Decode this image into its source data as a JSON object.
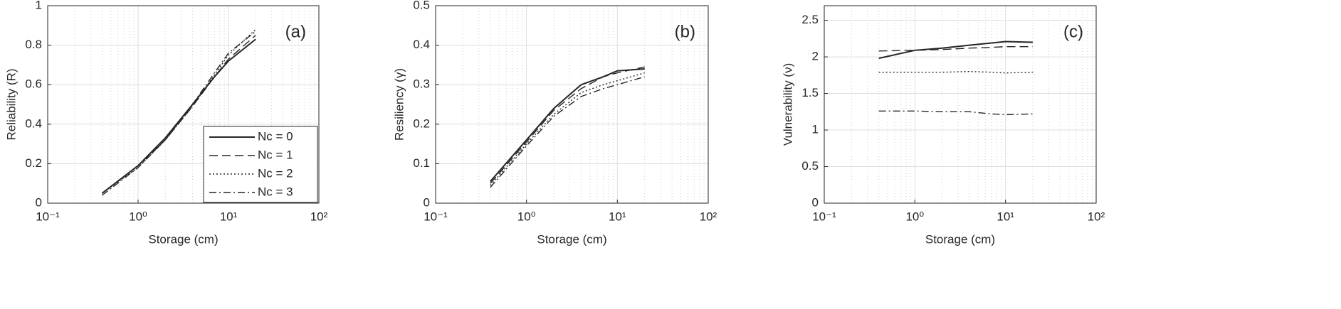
{
  "chart_data": [
    {
      "type": "line",
      "panel_label": "(a)",
      "xlabel": "Storage (cm)",
      "ylabel": "Reliability (R)",
      "log_x": true,
      "grid": true,
      "minor_grid": true,
      "legend": "lower right",
      "x": [
        0.4,
        1,
        2,
        4,
        7,
        10,
        20
      ],
      "xlim": [
        0.1,
        100
      ],
      "xticks": [
        {
          "value": 0.1,
          "label": "10⁻¹"
        },
        {
          "value": 1,
          "label": "10⁰"
        },
        {
          "value": 10,
          "label": "10¹"
        },
        {
          "value": 100,
          "label": "10²"
        }
      ],
      "ylim": [
        0,
        1
      ],
      "yticks": [
        0,
        0.2,
        0.4,
        0.6,
        0.8,
        1
      ],
      "series": [
        {
          "name": "Nc = 0",
          "color": "#262626",
          "line_style": "solid",
          "values": [
            0.05,
            0.19,
            0.33,
            0.5,
            0.64,
            0.72,
            0.83
          ]
        },
        {
          "name": "Nc = 1",
          "color": "#262626",
          "line_style": "dashed",
          "values": [
            0.05,
            0.19,
            0.32,
            0.49,
            0.64,
            0.73,
            0.85
          ]
        },
        {
          "name": "Nc = 2",
          "color": "#262626",
          "line_style": "dotted",
          "values": [
            0.05,
            0.18,
            0.32,
            0.49,
            0.65,
            0.75,
            0.88
          ]
        },
        {
          "name": "Nc = 3",
          "color": "#262626",
          "line_style": "dashdot",
          "values": [
            0.04,
            0.18,
            0.32,
            0.5,
            0.66,
            0.76,
            0.87
          ]
        }
      ]
    },
    {
      "type": "line",
      "panel_label": "(b)",
      "xlabel": "Storage (cm)",
      "ylabel": "Resiliency (γ)",
      "log_x": true,
      "grid": true,
      "minor_grid": true,
      "x": [
        0.4,
        1,
        2,
        4,
        7,
        10,
        20
      ],
      "xlim": [
        0.1,
        100
      ],
      "xticks": [
        {
          "value": 0.1,
          "label": "10⁻¹"
        },
        {
          "value": 1,
          "label": "10⁰"
        },
        {
          "value": 10,
          "label": "10¹"
        },
        {
          "value": 100,
          "label": "10²"
        }
      ],
      "ylim": [
        0,
        0.5
      ],
      "yticks": [
        0,
        0.1,
        0.2,
        0.3,
        0.4,
        0.5
      ],
      "series": [
        {
          "color": "#262626",
          "line_style": "solid",
          "values": [
            0.055,
            0.16,
            0.24,
            0.3,
            0.32,
            0.335,
            0.34
          ]
        },
        {
          "color": "#262626",
          "line_style": "dashed",
          "values": [
            0.05,
            0.155,
            0.235,
            0.29,
            0.32,
            0.33,
            0.345
          ]
        },
        {
          "color": "#262626",
          "line_style": "dotted",
          "values": [
            0.045,
            0.15,
            0.225,
            0.28,
            0.3,
            0.31,
            0.33
          ]
        },
        {
          "color": "#262626",
          "line_style": "dashdot",
          "values": [
            0.04,
            0.145,
            0.22,
            0.27,
            0.29,
            0.3,
            0.32
          ]
        }
      ]
    },
    {
      "type": "line",
      "panel_label": "(c)",
      "xlabel": "Storage (cm)",
      "ylabel": "Vulnerability (ν)",
      "log_x": true,
      "grid": true,
      "minor_grid": true,
      "x": [
        0.4,
        1,
        2,
        4,
        7,
        10,
        20
      ],
      "xlim": [
        0.1,
        100
      ],
      "xticks": [
        {
          "value": 0.1,
          "label": "10⁻¹"
        },
        {
          "value": 1,
          "label": "10⁰"
        },
        {
          "value": 10,
          "label": "10¹"
        },
        {
          "value": 100,
          "label": "10²"
        }
      ],
      "ylim": [
        0,
        2.7
      ],
      "yticks": [
        0,
        0.5,
        1,
        1.5,
        2,
        2.5
      ],
      "series": [
        {
          "color": "#262626",
          "line_style": "solid",
          "values": [
            1.98,
            2.09,
            2.12,
            2.16,
            2.19,
            2.21,
            2.2
          ]
        },
        {
          "color": "#262626",
          "line_style": "dashed",
          "values": [
            2.08,
            2.09,
            2.1,
            2.12,
            2.13,
            2.14,
            2.14
          ]
        },
        {
          "color": "#262626",
          "line_style": "dotted",
          "values": [
            1.79,
            1.79,
            1.79,
            1.8,
            1.79,
            1.78,
            1.79
          ]
        },
        {
          "color": "#262626",
          "line_style": "dashdot",
          "values": [
            1.26,
            1.26,
            1.25,
            1.25,
            1.22,
            1.21,
            1.22
          ]
        }
      ]
    }
  ]
}
